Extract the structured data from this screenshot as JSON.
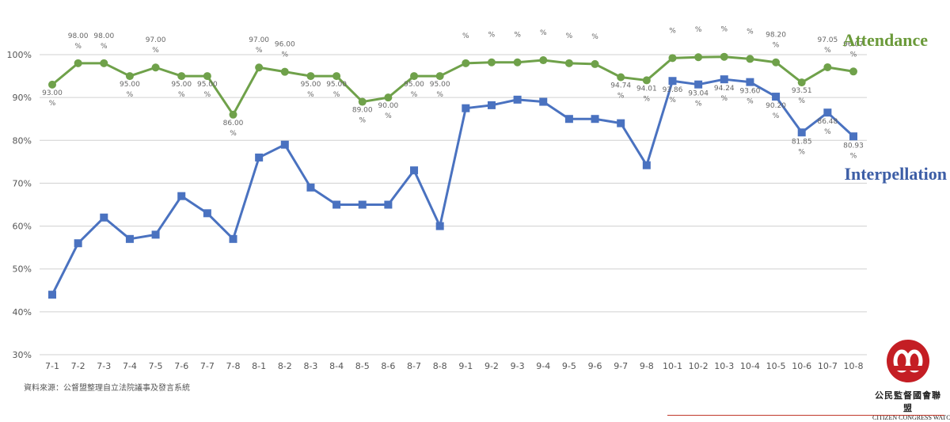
{
  "chart_data": {
    "type": "line",
    "title": "",
    "xlabel": "",
    "ylabel": "",
    "ylim": [
      30,
      100
    ],
    "yticks": [
      "30%",
      "40%",
      "50%",
      "60%",
      "70%",
      "80%",
      "90%",
      "100%"
    ],
    "grid": true,
    "categories": [
      "7-1",
      "7-2",
      "7-3",
      "7-4",
      "7-5",
      "7-6",
      "7-7",
      "7-8",
      "8-1",
      "8-2",
      "8-3",
      "8-4",
      "8-5",
      "8-6",
      "8-7",
      "8-8",
      "9-1",
      "9-2",
      "9-3",
      "9-4",
      "9-5",
      "9-6",
      "9-7",
      "9-8",
      "10-1",
      "10-2",
      "10-3",
      "10-4",
      "10-5",
      "10-6",
      "10-7",
      "10-8"
    ],
    "series": [
      {
        "name": "Attendance",
        "color": "#6fa14a",
        "marker": "circle",
        "values": [
          93.0,
          98.0,
          98.0,
          95.0,
          97.0,
          95.0,
          95.0,
          86.0,
          97.0,
          96.0,
          95.0,
          95.0,
          89.0,
          90.0,
          95.0,
          95.0,
          98.0,
          98.2,
          98.2,
          98.7,
          98.0,
          97.8,
          94.74,
          94.01,
          99.2,
          99.4,
          99.5,
          99.0,
          98.2,
          93.51,
          97.05,
          96.07
        ],
        "labels": [
          "93.00 %",
          "98.00 %",
          "98.00 %",
          "95.00 %",
          "97.00 %",
          "95.00 %",
          "95.00 %",
          "86.00 %",
          "97.00 %",
          "96.00 %",
          "95.00 %",
          "95.00 %",
          "89.00 %",
          "90.00 %",
          "95.00 %",
          "95.00 %",
          "%",
          "%",
          "%",
          "%",
          "%",
          "%",
          "94.74 %",
          "94.01 %",
          "%",
          "%",
          "%",
          "%",
          "98.20 %",
          "93.51 %",
          "97.05 %",
          "96.07 %"
        ]
      },
      {
        "name": "Interpellation",
        "color": "#4a72c0",
        "marker": "square",
        "values": [
          44,
          56,
          62,
          57,
          58,
          67,
          63,
          57,
          76,
          79,
          69,
          65,
          65,
          65,
          73,
          60,
          87.5,
          88.2,
          89.5,
          89.0,
          85.0,
          85.0,
          84.0,
          74.2,
          93.86,
          93.04,
          94.24,
          93.6,
          90.2,
          81.85,
          86.48,
          80.93
        ],
        "labels": [
          "",
          "",
          "",
          "",
          "",
          "",
          "",
          "",
          "",
          "",
          "",
          "",
          "",
          "",
          "",
          "",
          "",
          "",
          "",
          "",
          "",
          "",
          "",
          "",
          "93.86 %",
          "93.04 %",
          "94.24 %",
          "93.60 %",
          "90.20 %",
          "81.85 %",
          "86.48 %",
          "80.93 %"
        ]
      }
    ]
  },
  "legend": {
    "attendance": "Attendance",
    "interpellation": "Interpellation"
  },
  "source_note": "資料來源：公督盟整理自立法院議事及發言系統",
  "logo": {
    "name_cn": "公民監督國會聯盟",
    "name_en": "CITIZEN CONGRESS WATCH",
    "color": "#c41e24"
  }
}
